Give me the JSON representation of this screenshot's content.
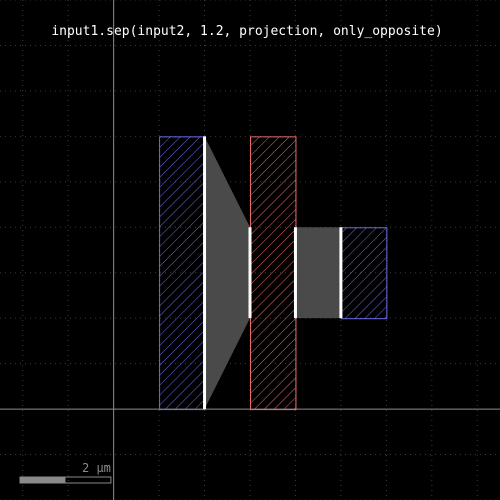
{
  "title": "input1.sep(input2, 1.2, projection, only_opposite)",
  "scale_bar": {
    "label": "2 μm",
    "length_um": 2
  },
  "colors": {
    "background": "#000000",
    "grid": "#3a3a3a",
    "axis": "#8c8c8c",
    "input1": "#6b6be6",
    "input2": "#e86a6a",
    "marker_fill": "#4a4a4a",
    "marker_edge": "#ffffff"
  },
  "view": {
    "x_range_um": [
      -2.5,
      8.5
    ],
    "y_range_um": [
      -2,
      9
    ]
  },
  "shapes": {
    "input1": [
      {
        "name": "input1-left-rect",
        "x": [
          1,
          2
        ],
        "y": [
          0,
          6
        ]
      },
      {
        "name": "input1-right-rect",
        "x": [
          5,
          6
        ],
        "y": [
          2,
          4
        ]
      }
    ],
    "input2": [
      {
        "name": "input2-rect",
        "x": [
          3,
          4
        ],
        "y": [
          0,
          6
        ]
      }
    ]
  },
  "markers": [
    {
      "name": "marker-trapezoid",
      "points": [
        [
          2,
          0
        ],
        [
          2,
          6
        ],
        [
          3,
          4
        ],
        [
          3,
          2
        ]
      ]
    },
    {
      "name": "marker-rect",
      "points": [
        [
          4,
          2
        ],
        [
          4,
          4
        ],
        [
          5,
          4
        ],
        [
          5,
          2
        ]
      ]
    }
  ],
  "edges": [
    {
      "name": "edge-input1-left",
      "x": 2,
      "y": [
        0,
        6
      ]
    },
    {
      "name": "edge-input2-left",
      "x": 3,
      "y": [
        2,
        4
      ]
    },
    {
      "name": "edge-input2-right",
      "x": 4,
      "y": [
        2,
        4
      ]
    },
    {
      "name": "edge-input1-right",
      "x": 5,
      "y": [
        2,
        4
      ]
    }
  ]
}
